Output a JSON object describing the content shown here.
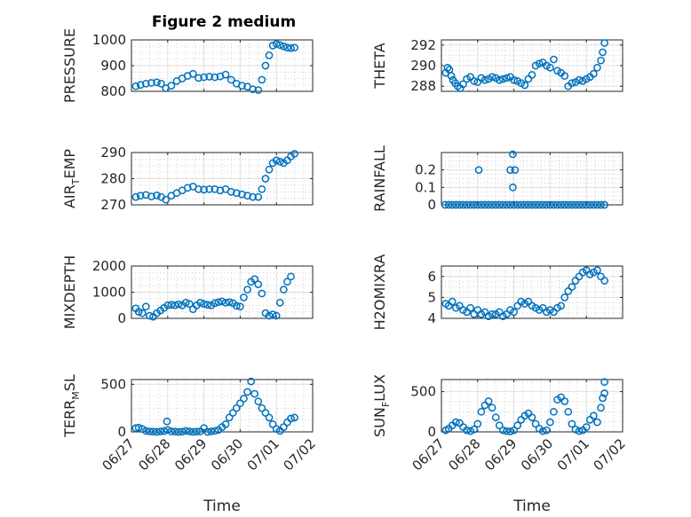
{
  "figure": {
    "title": "Figure 2 medium",
    "marker_color": "#0072bd"
  },
  "chart_data": [
    {
      "type": "scatter",
      "ylabel": "PRESSURE",
      "ylim": [
        800,
        1000
      ],
      "yticks": [
        800,
        900,
        1000
      ],
      "ytick_labels": [
        "800",
        "900",
        "1000"
      ],
      "xlim": [
        0,
        5
      ],
      "xticks": [
        0,
        1,
        2,
        3,
        4,
        5
      ],
      "xtick_labels": [
        "06/27",
        "06/28",
        "06/29",
        "06/30",
        "07/01",
        "07/02"
      ],
      "xlabel": "",
      "grid": true,
      "x": [
        0.12,
        0.25,
        0.4,
        0.55,
        0.7,
        0.82,
        0.95,
        1.1,
        1.25,
        1.4,
        1.55,
        1.7,
        1.85,
        2.0,
        2.15,
        2.3,
        2.45,
        2.6,
        2.75,
        2.9,
        3.05,
        3.2,
        3.35,
        3.5,
        3.6,
        3.7,
        3.8,
        3.9,
        4.0,
        4.1,
        4.2,
        4.3,
        4.4,
        4.5
      ],
      "y": [
        820,
        825,
        830,
        833,
        835,
        830,
        812,
        822,
        840,
        850,
        860,
        868,
        852,
        855,
        857,
        855,
        858,
        865,
        845,
        830,
        822,
        818,
        808,
        805,
        845,
        900,
        940,
        978,
        985,
        980,
        975,
        970,
        968,
        970
      ],
      "series_name": ""
    },
    {
      "type": "scatter",
      "ylabel": "THETA",
      "ylim": [
        287.5,
        292.5
      ],
      "yticks": [
        288,
        290,
        292
      ],
      "ytick_labels": [
        "288",
        "290",
        "292"
      ],
      "xlim": [
        0,
        5
      ],
      "xticks": [
        0,
        1,
        2,
        3,
        4,
        5
      ],
      "xtick_labels": [
        "06/27",
        "06/28",
        "06/29",
        "06/30",
        "07/01",
        "07/02"
      ],
      "xlabel": "",
      "grid": true,
      "x": [
        0.12,
        0.17,
        0.22,
        0.27,
        0.32,
        0.38,
        0.45,
        0.52,
        0.6,
        0.7,
        0.8,
        0.9,
        1.0,
        1.1,
        1.2,
        1.3,
        1.4,
        1.5,
        1.6,
        1.7,
        1.8,
        1.9,
        2.0,
        2.1,
        2.2,
        2.3,
        2.4,
        2.5,
        2.6,
        2.7,
        2.8,
        2.9,
        3.0,
        3.1,
        3.2,
        3.3,
        3.4,
        3.5,
        3.6,
        3.7,
        3.8,
        3.9,
        4.0,
        4.1,
        4.2,
        4.3,
        4.4,
        4.45,
        4.5
      ],
      "y": [
        289.3,
        289.8,
        289.6,
        289.0,
        288.6,
        288.3,
        288.0,
        287.8,
        288.2,
        288.7,
        288.9,
        288.5,
        288.4,
        288.8,
        288.6,
        288.7,
        288.9,
        288.8,
        288.6,
        288.7,
        288.8,
        288.9,
        288.6,
        288.5,
        288.3,
        288.1,
        288.7,
        289.1,
        290.0,
        290.2,
        290.3,
        290.0,
        289.8,
        290.6,
        289.5,
        289.3,
        289.0,
        288.0,
        288.3,
        288.4,
        288.6,
        288.5,
        288.7,
        288.9,
        289.2,
        289.8,
        290.5,
        291.3,
        292.2
      ],
      "series_name": ""
    },
    {
      "type": "scatter",
      "ylabel": "AIR_T_EMP",
      "ylim": [
        270,
        290
      ],
      "yticks": [
        270,
        280,
        290
      ],
      "ytick_labels": [
        "270",
        "280",
        "290"
      ],
      "xlim": [
        0,
        5
      ],
      "xticks": [
        0,
        1,
        2,
        3,
        4,
        5
      ],
      "xtick_labels": [
        "06/27",
        "06/28",
        "06/29",
        "06/30",
        "07/01",
        "07/02"
      ],
      "xlabel": "",
      "grid": true,
      "x": [
        0.12,
        0.25,
        0.4,
        0.55,
        0.7,
        0.82,
        0.95,
        1.1,
        1.25,
        1.4,
        1.55,
        1.7,
        1.85,
        2.0,
        2.15,
        2.3,
        2.45,
        2.6,
        2.75,
        2.9,
        3.05,
        3.2,
        3.35,
        3.5,
        3.6,
        3.7,
        3.8,
        3.9,
        4.0,
        4.1,
        4.2,
        4.3,
        4.4,
        4.5
      ],
      "y": [
        273,
        273.5,
        273.8,
        273.2,
        273.6,
        273.0,
        272.0,
        273.5,
        274.5,
        275.5,
        276.5,
        277.0,
        276.0,
        275.8,
        276.0,
        276.0,
        275.5,
        276.0,
        275.0,
        274.5,
        274.0,
        273.5,
        273.0,
        273.0,
        276.0,
        280.0,
        283.5,
        286.0,
        287.0,
        286.5,
        286.0,
        287.0,
        288.5,
        289.5
      ],
      "series_name": ""
    },
    {
      "type": "scatter",
      "ylabel": "RAINFALL",
      "ylim": [
        0,
        0.3
      ],
      "yticks": [
        0,
        0.1,
        0.2
      ],
      "ytick_labels": [
        "0",
        "0.1",
        "0.2"
      ],
      "xlim": [
        0,
        5
      ],
      "xticks": [
        0,
        1,
        2,
        3,
        4,
        5
      ],
      "xtick_labels": [
        "06/27",
        "06/28",
        "06/29",
        "06/30",
        "07/01",
        "07/02"
      ],
      "xlabel": "",
      "grid": true,
      "x": [
        0.1,
        0.2,
        0.3,
        0.4,
        0.5,
        0.6,
        0.7,
        0.8,
        0.9,
        1.0,
        1.1,
        1.2,
        1.3,
        1.4,
        1.5,
        1.6,
        1.7,
        1.8,
        1.9,
        2.0,
        2.1,
        2.2,
        2.3,
        2.4,
        2.5,
        2.6,
        2.7,
        2.8,
        2.9,
        3.0,
        3.1,
        3.2,
        3.3,
        3.4,
        3.5,
        3.6,
        3.7,
        3.8,
        3.9,
        4.0,
        4.1,
        4.2,
        4.3,
        4.4,
        4.5,
        1.03,
        1.9,
        1.97,
        1.97,
        2.03
      ],
      "y": [
        0,
        0,
        0,
        0,
        0,
        0,
        0,
        0,
        0,
        0,
        0,
        0,
        0,
        0,
        0,
        0,
        0,
        0,
        0,
        0,
        0,
        0,
        0,
        0,
        0,
        0,
        0,
        0,
        0,
        0,
        0,
        0,
        0,
        0,
        0,
        0,
        0,
        0,
        0,
        0,
        0,
        0,
        0,
        0,
        0,
        0.2,
        0.2,
        0.29,
        0.1,
        0.2
      ],
      "series_name": ""
    },
    {
      "type": "scatter",
      "ylabel": "MIXDEPTH",
      "ylim": [
        0,
        2000
      ],
      "yticks": [
        0,
        1000,
        2000
      ],
      "ytick_labels": [
        "0",
        "1000",
        "2000"
      ],
      "xlim": [
        0,
        5
      ],
      "xticks": [
        0,
        1,
        2,
        3,
        4,
        5
      ],
      "xtick_labels": [
        "06/27",
        "06/28",
        "06/29",
        "06/30",
        "07/01",
        "07/02"
      ],
      "xlabel": "",
      "grid": true,
      "x": [
        0.12,
        0.2,
        0.3,
        0.4,
        0.5,
        0.6,
        0.7,
        0.8,
        0.9,
        1.0,
        1.1,
        1.2,
        1.3,
        1.4,
        1.5,
        1.6,
        1.7,
        1.8,
        1.9,
        2.0,
        2.1,
        2.2,
        2.3,
        2.4,
        2.5,
        2.6,
        2.7,
        2.8,
        2.9,
        3.0,
        3.1,
        3.2,
        3.3,
        3.4,
        3.5,
        3.6,
        3.7,
        3.8,
        3.9,
        4.0,
        4.1,
        4.2,
        4.3,
        4.4
      ],
      "y": [
        380,
        250,
        200,
        450,
        100,
        60,
        200,
        300,
        400,
        500,
        520,
        500,
        540,
        500,
        600,
        550,
        350,
        500,
        600,
        550,
        520,
        500,
        580,
        620,
        650,
        600,
        620,
        580,
        480,
        450,
        800,
        1100,
        1400,
        1500,
        1300,
        950,
        200,
        100,
        150,
        100,
        600,
        1100,
        1400,
        1600
      ],
      "series_name": ""
    },
    {
      "type": "scatter",
      "ylabel": "H2OMIXRA",
      "ylim": [
        4,
        6.5
      ],
      "yticks": [
        4,
        5,
        6
      ],
      "ytick_labels": [
        "4",
        "5",
        "6"
      ],
      "xlim": [
        0,
        5
      ],
      "xticks": [
        0,
        1,
        2,
        3,
        4,
        5
      ],
      "xtick_labels": [
        "06/27",
        "06/28",
        "06/29",
        "06/30",
        "07/01",
        "07/02"
      ],
      "xlabel": "",
      "grid": true,
      "x": [
        0.12,
        0.2,
        0.3,
        0.4,
        0.5,
        0.6,
        0.7,
        0.8,
        0.9,
        1.0,
        1.1,
        1.2,
        1.3,
        1.4,
        1.5,
        1.6,
        1.7,
        1.8,
        1.9,
        2.0,
        2.1,
        2.2,
        2.3,
        2.4,
        2.5,
        2.6,
        2.7,
        2.8,
        2.9,
        3.0,
        3.1,
        3.2,
        3.3,
        3.4,
        3.5,
        3.6,
        3.7,
        3.8,
        3.9,
        4.0,
        4.1,
        4.2,
        4.3,
        4.4,
        4.5
      ],
      "y": [
        4.7,
        4.6,
        4.8,
        4.5,
        4.6,
        4.4,
        4.3,
        4.5,
        4.2,
        4.4,
        4.2,
        4.3,
        4.1,
        4.2,
        4.2,
        4.3,
        4.1,
        4.2,
        4.4,
        4.3,
        4.6,
        4.8,
        4.7,
        4.8,
        4.6,
        4.5,
        4.4,
        4.5,
        4.3,
        4.4,
        4.3,
        4.5,
        4.6,
        5.0,
        5.3,
        5.5,
        5.8,
        6.0,
        6.2,
        6.3,
        6.1,
        6.2,
        6.3,
        6.0,
        5.8
      ],
      "series_name": ""
    },
    {
      "type": "scatter",
      "ylabel": "TERR_M_SL",
      "ylim": [
        0,
        550
      ],
      "yticks": [
        0,
        500
      ],
      "ytick_labels": [
        "0",
        "500"
      ],
      "xlim": [
        0,
        5
      ],
      "xticks": [
        0,
        1,
        2,
        3,
        4,
        5
      ],
      "xtick_labels": [
        "06/27",
        "06/28",
        "06/29",
        "06/30",
        "07/01",
        "07/02"
      ],
      "xlabel": "Time",
      "grid": true,
      "x": [
        0.12,
        0.2,
        0.3,
        0.4,
        0.5,
        0.6,
        0.7,
        0.8,
        0.9,
        1.0,
        1.1,
        1.2,
        1.3,
        1.4,
        1.5,
        1.6,
        1.7,
        1.8,
        1.9,
        2.0,
        2.1,
        2.2,
        2.3,
        2.4,
        2.5,
        2.6,
        2.7,
        2.8,
        2.9,
        3.0,
        3.1,
        3.2,
        3.3,
        3.4,
        3.5,
        3.6,
        3.7,
        3.8,
        3.9,
        4.0,
        4.1,
        4.2,
        4.3,
        4.4,
        4.5,
        0.98
      ],
      "y": [
        40,
        45,
        30,
        10,
        5,
        2,
        0,
        5,
        8,
        20,
        5,
        3,
        0,
        2,
        10,
        5,
        0,
        2,
        5,
        40,
        0,
        5,
        10,
        20,
        50,
        80,
        150,
        200,
        250,
        300,
        350,
        420,
        530,
        400,
        320,
        250,
        200,
        150,
        80,
        30,
        10,
        50,
        100,
        140,
        150,
        110
      ],
      "series_name": ""
    },
    {
      "type": "scatter",
      "ylabel": "SUN_F_LUX",
      "ylim": [
        0,
        650
      ],
      "yticks": [
        0,
        500
      ],
      "ytick_labels": [
        "0",
        "500"
      ],
      "xlim": [
        0,
        5
      ],
      "xticks": [
        0,
        1,
        2,
        3,
        4,
        5
      ],
      "xtick_labels": [
        "06/27",
        "06/28",
        "06/29",
        "06/30",
        "07/01",
        "07/02"
      ],
      "xlabel": "Time",
      "grid": true,
      "x": [
        0.12,
        0.2,
        0.3,
        0.4,
        0.5,
        0.6,
        0.7,
        0.8,
        0.9,
        1.0,
        1.1,
        1.2,
        1.3,
        1.4,
        1.5,
        1.6,
        1.7,
        1.8,
        1.9,
        2.0,
        2.1,
        2.2,
        2.3,
        2.4,
        2.5,
        2.6,
        2.7,
        2.8,
        2.9,
        3.0,
        3.1,
        3.2,
        3.3,
        3.4,
        3.5,
        3.6,
        3.7,
        3.8,
        3.9,
        4.0,
        4.1,
        4.2,
        4.3,
        4.4,
        4.5,
        4.45,
        4.5
      ],
      "y": [
        20,
        40,
        80,
        120,
        110,
        60,
        20,
        10,
        30,
        100,
        250,
        330,
        380,
        300,
        180,
        80,
        20,
        10,
        5,
        20,
        80,
        150,
        200,
        230,
        180,
        100,
        40,
        10,
        20,
        120,
        250,
        400,
        430,
        380,
        250,
        100,
        30,
        10,
        20,
        60,
        150,
        200,
        120,
        300,
        480,
        420,
        620
      ],
      "series_name": ""
    }
  ]
}
